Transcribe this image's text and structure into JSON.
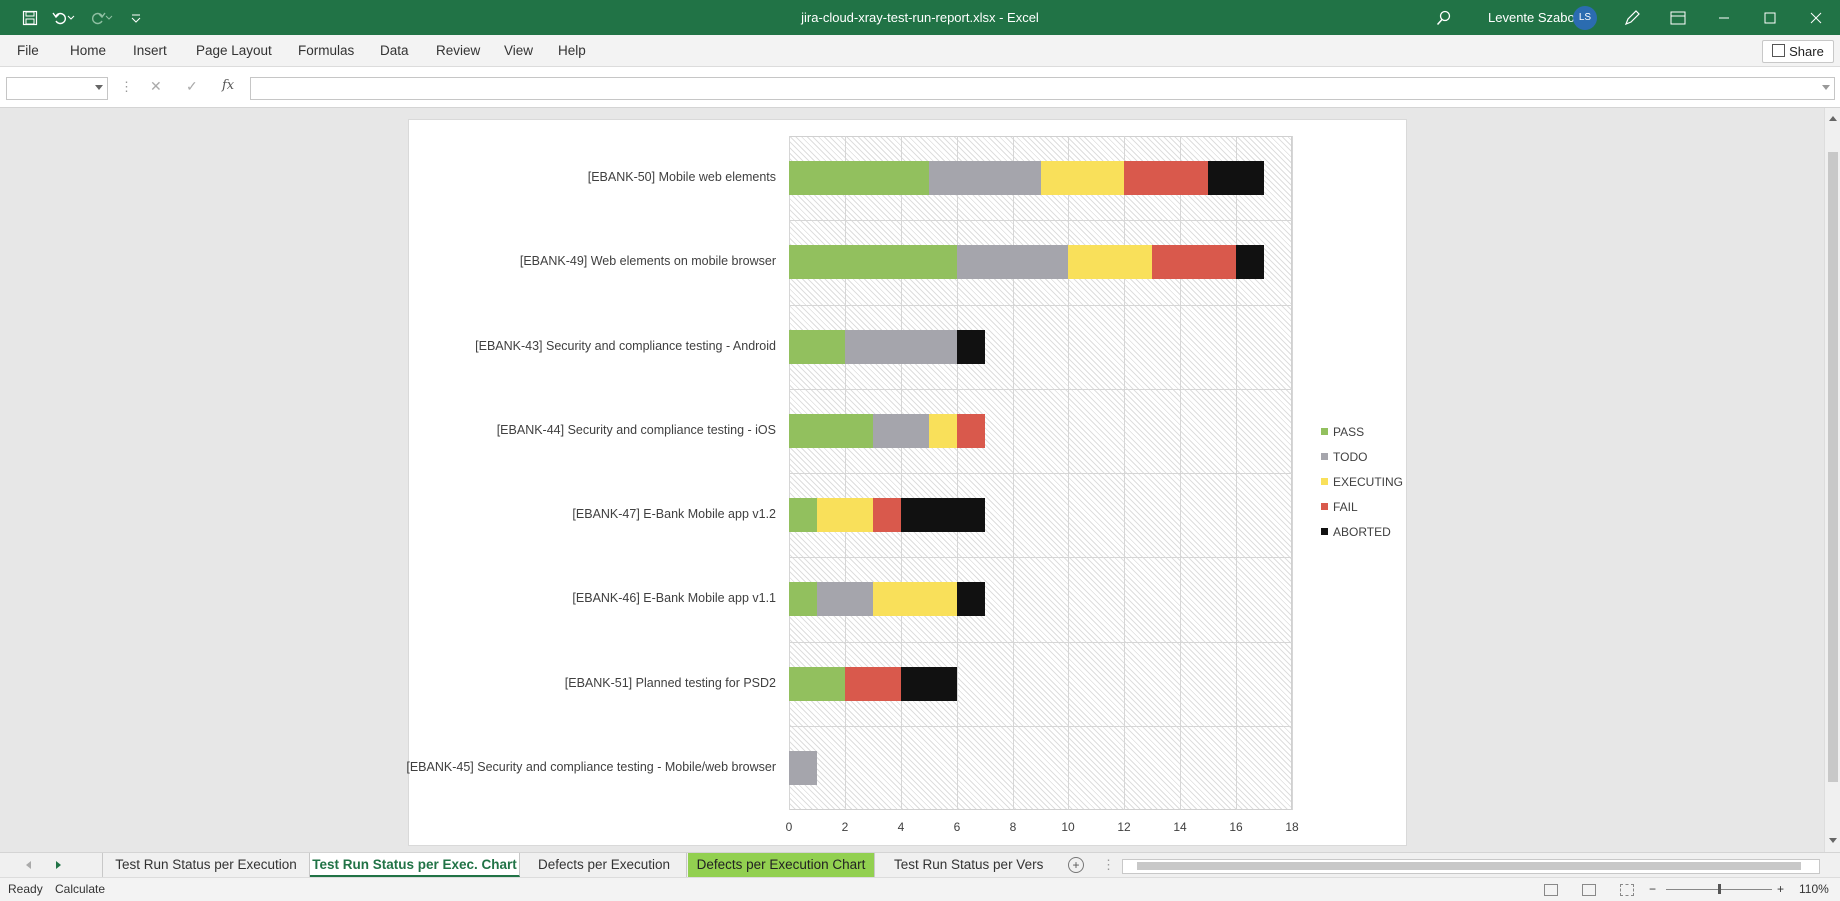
{
  "window": {
    "title": "jira-cloud-xray-test-run-report.xlsx  -  Excel",
    "user_name": "Levente Szabo",
    "user_initials": "LS"
  },
  "menu": [
    "File",
    "Home",
    "Insert",
    "Page Layout",
    "Formulas",
    "Data",
    "Review",
    "View",
    "Help"
  ],
  "share_label": "Share",
  "formula_bar": {
    "name_box": "",
    "fx_label": "fx",
    "formula": ""
  },
  "colors": {
    "pass": "#92c05e",
    "todo": "#a5a5ac",
    "executing": "#f9e05a",
    "fail": "#d9594c",
    "aborted": "#111111",
    "excel_green": "#217346"
  },
  "chart_data": {
    "type": "bar",
    "orientation": "horizontal",
    "stacked": true,
    "categories": [
      "[EBANK-50] Mobile web elements",
      "[EBANK-49] Web elements on mobile browser",
      "[EBANK-43] Security and compliance testing - Android",
      "[EBANK-44] Security and compliance testing - iOS",
      "[EBANK-47] E-Bank Mobile app v1.2",
      "[EBANK-46] E-Bank Mobile app v1.1",
      "[EBANK-51] Planned testing for PSD2",
      "[EBANK-45] Security and compliance testing - Mobile/web browser"
    ],
    "series": [
      {
        "name": "PASS",
        "color": "#92c05e",
        "values": [
          5,
          6,
          2,
          3,
          1,
          1,
          2,
          0
        ]
      },
      {
        "name": "TODO",
        "color": "#a5a5ac",
        "values": [
          4,
          4,
          4,
          2,
          0,
          2,
          0,
          1
        ]
      },
      {
        "name": "EXECUTING",
        "color": "#f9e05a",
        "values": [
          3,
          3,
          0,
          1,
          2,
          3,
          0,
          0
        ]
      },
      {
        "name": "FAIL",
        "color": "#d9594c",
        "values": [
          3,
          3,
          0,
          1,
          1,
          0,
          2,
          0
        ]
      },
      {
        "name": "ABORTED",
        "color": "#111111",
        "values": [
          2,
          1,
          1,
          0,
          3,
          1,
          2,
          0
        ]
      }
    ],
    "xlim": [
      0,
      18
    ],
    "xticks": [
      "0",
      "2",
      "4",
      "6",
      "8",
      "10",
      "12",
      "14",
      "16",
      "18"
    ],
    "grid": true,
    "legend": "right"
  },
  "tabs": [
    {
      "label": "Test Run Status per Execution",
      "state": "normal"
    },
    {
      "label": "Test Run Status per Exec. Chart",
      "state": "active"
    },
    {
      "label": "Defects per Execution",
      "state": "normal"
    },
    {
      "label": "Defects per Execution Chart",
      "state": "colored"
    },
    {
      "label": "Test Run Status per Vers",
      "state": "normal"
    }
  ],
  "tabs_more": "...",
  "status": {
    "ready": "Ready",
    "calculate": "Calculate",
    "zoom": "110%"
  }
}
